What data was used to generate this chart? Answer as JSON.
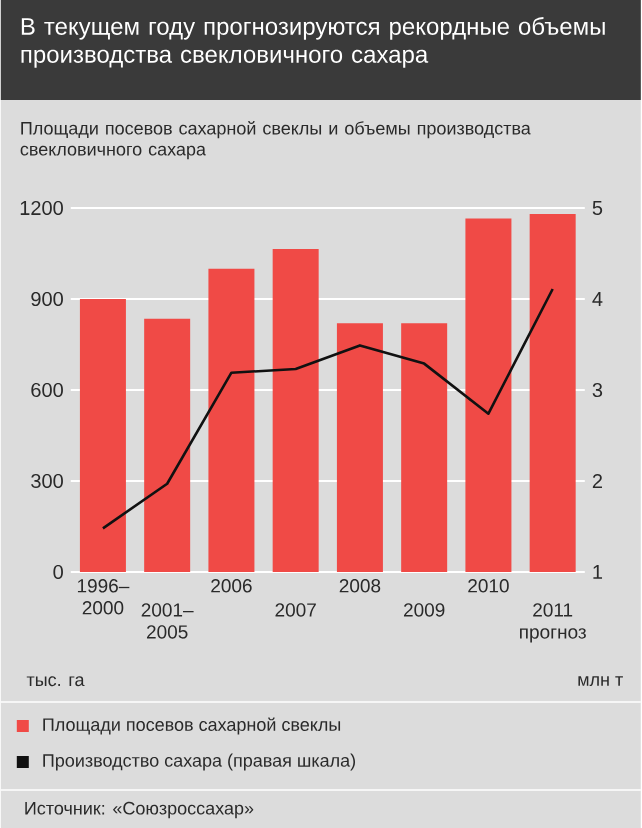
{
  "chart_data": {
    "type": "bar",
    "title": "В текущем году прогнозируются рекордные объемы производства свекловичного сахара",
    "subtitle": "Площади посевов сахарной свеклы и объемы производства свекловичного сахара",
    "categories": [
      "1996–2000",
      "2001–2005",
      "2006",
      "2007",
      "2008",
      "2009",
      "2010",
      "2011 прогноз"
    ],
    "series": [
      {
        "name": "Площади посевов сахарной свеклы",
        "color": "#f04a46",
        "values": [
          900,
          835,
          1000,
          1065,
          820,
          820,
          1165,
          1180
        ]
      },
      {
        "name": "Производство сахара (правая шкала)",
        "type": "line",
        "axis": "y2",
        "color": "#111111",
        "values": [
          1.48,
          1.97,
          3.19,
          3.23,
          3.49,
          3.29,
          2.74,
          4.11
        ]
      }
    ],
    "ylabel": "тыс. га",
    "y2label": "млн т",
    "ylim": [
      0,
      1200
    ],
    "yticks": [
      0,
      300,
      600,
      900,
      1200
    ],
    "y2lim": [
      1,
      5
    ],
    "y2ticks": [
      1,
      2,
      3,
      4,
      5
    ],
    "grid": "y",
    "legend": "bottom",
    "annotations": [
      "Источник: «Союзроссахар»"
    ]
  }
}
